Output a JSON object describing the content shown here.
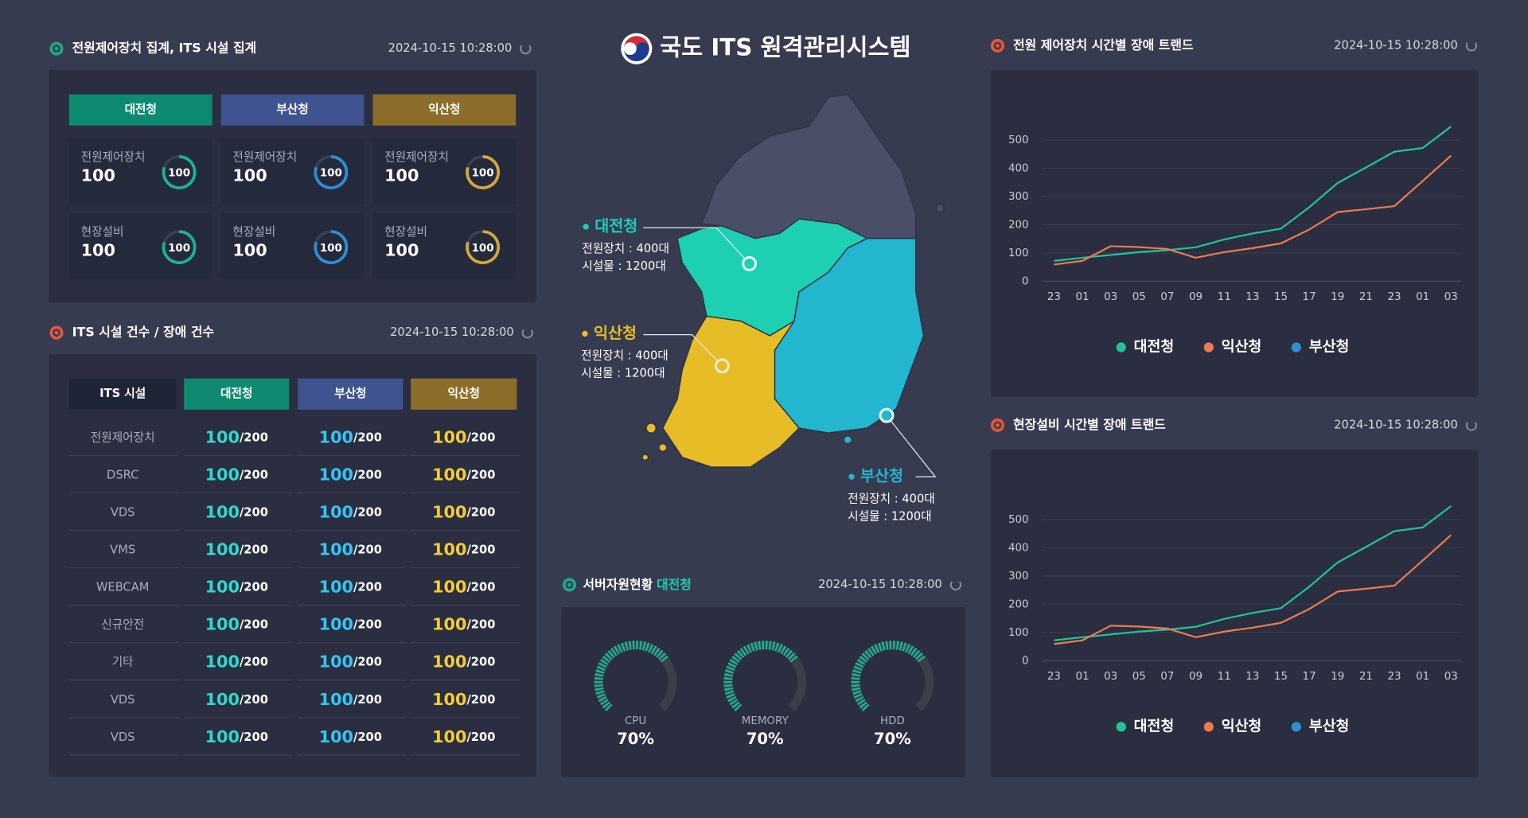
{
  "header": {
    "title": "국도 ITS 원격관리시스템"
  },
  "summary": {
    "title": "전원제어장치 집계, ITS 시설 집계",
    "timestamp": "2024-10-15 10:28:00",
    "tabs": [
      "대전청",
      "부산청",
      "익산청"
    ],
    "cards": [
      {
        "label": "전원제어장치",
        "value": 100,
        "ring": 100
      },
      {
        "label": "전원제어장치",
        "value": 100,
        "ring": 100
      },
      {
        "label": "전원제어장치",
        "value": 100,
        "ring": 100
      },
      {
        "label": "현장설비",
        "value": 100,
        "ring": 100
      },
      {
        "label": "현장설비",
        "value": 100,
        "ring": 100
      },
      {
        "label": "현장설비",
        "value": 100,
        "ring": 100
      }
    ]
  },
  "facilities": {
    "title": "ITS 시설 건수 / 장애 건수",
    "timestamp": "2024-10-15 10:28:00",
    "header": [
      "ITS 시설",
      "대전청",
      "부산청",
      "익산청"
    ],
    "rows": [
      {
        "name": "전원제어장치",
        "cells": [
          {
            "count": 100,
            "total": "/200"
          },
          {
            "count": 100,
            "total": "/200"
          },
          {
            "count": 100,
            "total": "/200"
          }
        ]
      },
      {
        "name": "DSRC",
        "cells": [
          {
            "count": 100,
            "total": "/200"
          },
          {
            "count": 100,
            "total": "/200"
          },
          {
            "count": 100,
            "total": "/200"
          }
        ]
      },
      {
        "name": "VDS",
        "cells": [
          {
            "count": 100,
            "total": "/200"
          },
          {
            "count": 100,
            "total": "/200"
          },
          {
            "count": 100,
            "total": "/200"
          }
        ]
      },
      {
        "name": "VMS",
        "cells": [
          {
            "count": 100,
            "total": "/200"
          },
          {
            "count": 100,
            "total": "/200"
          },
          {
            "count": 100,
            "total": "/200"
          }
        ]
      },
      {
        "name": "WEBCAM",
        "cells": [
          {
            "count": 100,
            "total": "/200"
          },
          {
            "count": 100,
            "total": "/200"
          },
          {
            "count": 100,
            "total": "/200"
          }
        ]
      },
      {
        "name": "신규안전",
        "cells": [
          {
            "count": 100,
            "total": "/200"
          },
          {
            "count": 100,
            "total": "/200"
          },
          {
            "count": 100,
            "total": "/200"
          }
        ]
      },
      {
        "name": "기타",
        "cells": [
          {
            "count": 100,
            "total": "/200"
          },
          {
            "count": 100,
            "total": "/200"
          },
          {
            "count": 100,
            "total": "/200"
          }
        ]
      },
      {
        "name": "VDS",
        "cells": [
          {
            "count": 100,
            "total": "/200"
          },
          {
            "count": 100,
            "total": "/200"
          },
          {
            "count": 100,
            "total": "/200"
          }
        ]
      },
      {
        "name": "VDS",
        "cells": [
          {
            "count": 100,
            "total": "/200"
          },
          {
            "count": 100,
            "total": "/200"
          },
          {
            "count": 100,
            "total": "/200"
          }
        ]
      }
    ]
  },
  "map": {
    "regions": [
      {
        "name": "대전청",
        "power": "전원장치 : 400대",
        "facility": "시설물 : 1200대"
      },
      {
        "name": "익산청",
        "power": "전원장치 : 400대",
        "facility": "시설물 : 1200대"
      },
      {
        "name": "부산청",
        "power": "전원장치 : 400대",
        "facility": "시설물 : 1200대"
      }
    ]
  },
  "server": {
    "title": "서버자원현황",
    "region": "대전청",
    "timestamp": "2024-10-15 10:28:00",
    "gauges": {
      "labels": [
        "CPU",
        "MEMORY",
        "HDD"
      ],
      "values": [
        70,
        70,
        70
      ],
      "value_labels": [
        "70%",
        "70%",
        "70%"
      ]
    }
  },
  "chart_data": [
    {
      "type": "line",
      "title": "전원 제어장치 시간별 장애 트랜드",
      "timestamp": "2024-10-15 10:28:00",
      "categories": [
        "23",
        "01",
        "03",
        "05",
        "07",
        "09",
        "11",
        "13",
        "15",
        "17",
        "19",
        "21",
        "23",
        "01",
        "03"
      ],
      "series": [
        {
          "name": "대전청",
          "color": "#22c39a",
          "values": [
            72,
            83,
            93,
            103,
            110,
            120,
            148,
            169,
            186,
            262,
            348,
            403,
            459,
            472,
            548
          ]
        },
        {
          "name": "익산청",
          "color": "#ee7a4c",
          "values": [
            59,
            72,
            124,
            121,
            114,
            83,
            103,
            117,
            134,
            183,
            245,
            255,
            266,
            355,
            445
          ]
        },
        {
          "name": "부산청",
          "color": "#2d8fd6",
          "values": [
            null,
            null,
            null,
            null,
            null,
            null,
            null,
            null,
            null,
            null,
            null,
            null,
            null,
            null,
            null
          ]
        }
      ],
      "ylim": [
        0,
        600
      ],
      "yticks": [
        0,
        100,
        200,
        300,
        400,
        500
      ],
      "grid": true
    },
    {
      "type": "line",
      "title": "현장설비 시간별 장애 트랜드",
      "timestamp": "2024-10-15 10:28:00",
      "categories": [
        "23",
        "01",
        "03",
        "05",
        "07",
        "09",
        "11",
        "13",
        "15",
        "17",
        "19",
        "21",
        "23",
        "01",
        "03"
      ],
      "series": [
        {
          "name": "대전청",
          "color": "#22c39a",
          "values": [
            72,
            83,
            93,
            103,
            110,
            120,
            148,
            169,
            186,
            262,
            348,
            403,
            459,
            472,
            548
          ]
        },
        {
          "name": "익산청",
          "color": "#ee7a4c",
          "values": [
            59,
            72,
            124,
            121,
            114,
            83,
            103,
            117,
            134,
            183,
            245,
            255,
            266,
            355,
            445
          ]
        },
        {
          "name": "부산청",
          "color": "#2d8fd6",
          "values": [
            null,
            null,
            null,
            null,
            null,
            null,
            null,
            null,
            null,
            null,
            null,
            null,
            null,
            null,
            null
          ]
        }
      ],
      "ylim": [
        0,
        600
      ],
      "yticks": [
        0,
        100,
        200,
        300,
        400,
        500
      ],
      "grid": true
    }
  ]
}
